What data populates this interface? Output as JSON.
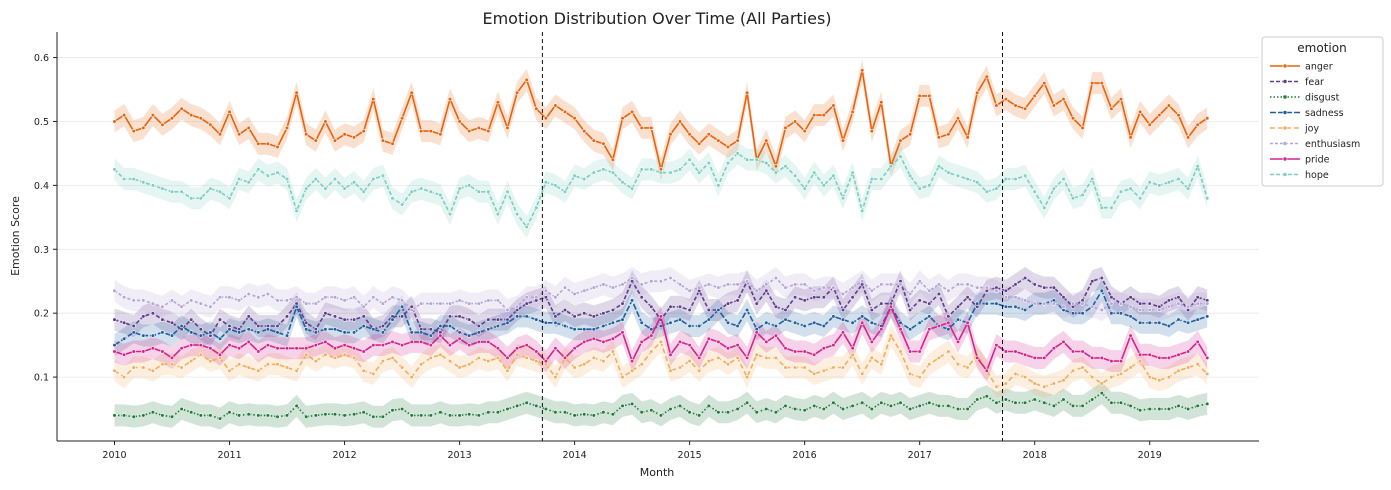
{
  "chart_data": {
    "type": "line",
    "title": "Emotion Distribution Over Time (All Parties)",
    "xlabel": "Month",
    "ylabel": "Emotion Score",
    "xlim": [
      2009.5,
      2019.95
    ],
    "ylim": [
      0.0,
      0.64
    ],
    "x_ticks": [
      "2010",
      "2011",
      "2012",
      "2013",
      "2014",
      "2015",
      "2016",
      "2017",
      "2018",
      "2019"
    ],
    "y_ticks": [
      "0.1",
      "0.2",
      "0.3",
      "0.4",
      "0.5",
      "0.6"
    ],
    "grid": "horizontal",
    "legend": {
      "title": "emotion",
      "placement": "right"
    },
    "vlines": [
      2013.72,
      2017.72
    ],
    "x_start": 2010.0,
    "x_step_months": 1,
    "series": [
      {
        "name": "anger",
        "color": "#e6640f",
        "dash": "",
        "values": [
          0.5,
          0.51,
          0.485,
          0.49,
          0.51,
          0.495,
          0.505,
          0.52,
          0.51,
          0.505,
          0.495,
          0.48,
          0.515,
          0.48,
          0.49,
          0.465,
          0.465,
          0.46,
          0.49,
          0.545,
          0.48,
          0.47,
          0.5,
          0.47,
          0.48,
          0.475,
          0.485,
          0.535,
          0.47,
          0.465,
          0.505,
          0.545,
          0.485,
          0.485,
          0.48,
          0.535,
          0.5,
          0.485,
          0.49,
          0.485,
          0.53,
          0.49,
          0.545,
          0.565,
          0.52,
          0.505,
          0.525,
          0.515,
          0.505,
          0.485,
          0.47,
          0.465,
          0.44,
          0.505,
          0.515,
          0.49,
          0.49,
          0.425,
          0.48,
          0.5,
          0.48,
          0.465,
          0.48,
          0.47,
          0.46,
          0.47,
          0.545,
          0.44,
          0.47,
          0.43,
          0.49,
          0.5,
          0.485,
          0.51,
          0.51,
          0.525,
          0.47,
          0.515,
          0.58,
          0.485,
          0.53,
          0.43,
          0.47,
          0.48,
          0.54,
          0.54,
          0.475,
          0.48,
          0.505,
          0.475,
          0.545,
          0.57,
          0.525,
          0.535,
          0.525,
          0.52,
          0.54,
          0.56,
          0.525,
          0.535,
          0.505,
          0.49,
          0.56,
          0.56,
          0.52,
          0.535,
          0.475,
          0.515,
          0.495,
          0.51,
          0.525,
          0.51,
          0.475,
          0.495,
          0.505
        ]
      },
      {
        "name": "fear",
        "color": "#5f3c8e",
        "dash": "4,2",
        "values": [
          0.19,
          0.185,
          0.18,
          0.195,
          0.2,
          0.19,
          0.185,
          0.175,
          0.19,
          0.175,
          0.165,
          0.19,
          0.18,
          0.175,
          0.195,
          0.18,
          0.18,
          0.18,
          0.195,
          0.215,
          0.185,
          0.175,
          0.2,
          0.195,
          0.19,
          0.19,
          0.195,
          0.175,
          0.18,
          0.195,
          0.195,
          0.21,
          0.175,
          0.175,
          0.17,
          0.195,
          0.195,
          0.19,
          0.18,
          0.19,
          0.19,
          0.19,
          0.205,
          0.215,
          0.22,
          0.225,
          0.195,
          0.205,
          0.195,
          0.2,
          0.195,
          0.2,
          0.205,
          0.215,
          0.25,
          0.225,
          0.21,
          0.19,
          0.21,
          0.21,
          0.205,
          0.235,
          0.205,
          0.205,
          0.215,
          0.22,
          0.25,
          0.215,
          0.235,
          0.21,
          0.205,
          0.225,
          0.22,
          0.225,
          0.225,
          0.24,
          0.205,
          0.225,
          0.245,
          0.205,
          0.215,
          0.215,
          0.25,
          0.205,
          0.22,
          0.215,
          0.23,
          0.195,
          0.21,
          0.225,
          0.21,
          0.235,
          0.24,
          0.235,
          0.245,
          0.255,
          0.245,
          0.24,
          0.24,
          0.225,
          0.21,
          0.22,
          0.25,
          0.255,
          0.225,
          0.215,
          0.225,
          0.215,
          0.215,
          0.21,
          0.22,
          0.225,
          0.205,
          0.225,
          0.22
        ]
      },
      {
        "name": "disgust",
        "color": "#1e7a39",
        "dash": "1.5,2",
        "values": [
          0.04,
          0.04,
          0.038,
          0.04,
          0.045,
          0.04,
          0.038,
          0.05,
          0.045,
          0.04,
          0.04,
          0.035,
          0.045,
          0.04,
          0.042,
          0.04,
          0.04,
          0.038,
          0.04,
          0.055,
          0.038,
          0.04,
          0.042,
          0.042,
          0.04,
          0.042,
          0.045,
          0.038,
          0.038,
          0.048,
          0.05,
          0.04,
          0.04,
          0.04,
          0.045,
          0.04,
          0.04,
          0.042,
          0.04,
          0.045,
          0.045,
          0.05,
          0.055,
          0.06,
          0.055,
          0.05,
          0.045,
          0.045,
          0.04,
          0.042,
          0.04,
          0.045,
          0.042,
          0.055,
          0.058,
          0.045,
          0.048,
          0.04,
          0.05,
          0.055,
          0.045,
          0.04,
          0.055,
          0.045,
          0.045,
          0.05,
          0.06,
          0.045,
          0.05,
          0.045,
          0.055,
          0.05,
          0.048,
          0.055,
          0.05,
          0.06,
          0.05,
          0.055,
          0.06,
          0.05,
          0.06,
          0.055,
          0.06,
          0.05,
          0.055,
          0.06,
          0.055,
          0.055,
          0.05,
          0.05,
          0.065,
          0.07,
          0.06,
          0.065,
          0.06,
          0.06,
          0.065,
          0.06,
          0.055,
          0.065,
          0.055,
          0.055,
          0.065,
          0.075,
          0.06,
          0.06,
          0.055,
          0.048,
          0.05,
          0.05,
          0.05,
          0.055,
          0.05,
          0.055,
          0.058
        ]
      },
      {
        "name": "sadness",
        "color": "#1f5fa0",
        "dash": "6,2",
        "values": [
          0.15,
          0.16,
          0.17,
          0.165,
          0.165,
          0.17,
          0.165,
          0.18,
          0.17,
          0.165,
          0.17,
          0.16,
          0.175,
          0.17,
          0.175,
          0.17,
          0.175,
          0.17,
          0.165,
          0.21,
          0.175,
          0.17,
          0.175,
          0.175,
          0.17,
          0.17,
          0.18,
          0.175,
          0.17,
          0.19,
          0.21,
          0.17,
          0.17,
          0.165,
          0.18,
          0.18,
          0.17,
          0.165,
          0.17,
          0.175,
          0.18,
          0.185,
          0.195,
          0.195,
          0.19,
          0.185,
          0.185,
          0.18,
          0.175,
          0.175,
          0.175,
          0.18,
          0.185,
          0.19,
          0.22,
          0.185,
          0.175,
          0.18,
          0.185,
          0.19,
          0.18,
          0.18,
          0.19,
          0.205,
          0.185,
          0.18,
          0.205,
          0.175,
          0.185,
          0.18,
          0.19,
          0.185,
          0.18,
          0.185,
          0.18,
          0.195,
          0.19,
          0.185,
          0.195,
          0.185,
          0.18,
          0.21,
          0.185,
          0.175,
          0.185,
          0.195,
          0.18,
          0.175,
          0.19,
          0.185,
          0.215,
          0.215,
          0.215,
          0.21,
          0.21,
          0.205,
          0.215,
          0.215,
          0.22,
          0.205,
          0.2,
          0.2,
          0.21,
          0.235,
          0.2,
          0.2,
          0.195,
          0.185,
          0.185,
          0.185,
          0.18,
          0.19,
          0.185,
          0.19,
          0.195
        ]
      },
      {
        "name": "joy",
        "color": "#f3ad5e",
        "dash": "5,3",
        "values": [
          0.11,
          0.1,
          0.115,
          0.115,
          0.11,
          0.12,
          0.12,
          0.115,
          0.125,
          0.135,
          0.125,
          0.13,
          0.11,
          0.12,
          0.115,
          0.11,
          0.12,
          0.12,
          0.115,
          0.11,
          0.135,
          0.125,
          0.135,
          0.13,
          0.135,
          0.13,
          0.11,
          0.105,
          0.125,
          0.13,
          0.115,
          0.1,
          0.12,
          0.13,
          0.135,
          0.125,
          0.115,
          0.12,
          0.13,
          0.125,
          0.13,
          0.11,
          0.135,
          0.13,
          0.125,
          0.12,
          0.1,
          0.13,
          0.115,
          0.12,
          0.13,
          0.125,
          0.14,
          0.1,
          0.11,
          0.12,
          0.14,
          0.155,
          0.11,
          0.115,
          0.125,
          0.11,
          0.125,
          0.13,
          0.12,
          0.13,
          0.1,
          0.135,
          0.13,
          0.13,
          0.115,
          0.115,
          0.115,
          0.105,
          0.11,
          0.115,
          0.115,
          0.135,
          0.105,
          0.13,
          0.12,
          0.165,
          0.14,
          0.105,
          0.1,
          0.12,
          0.13,
          0.14,
          0.12,
          0.115,
          0.135,
          0.11,
          0.085,
          0.09,
          0.105,
          0.1,
          0.09,
          0.085,
          0.09,
          0.095,
          0.11,
          0.115,
          0.1,
          0.09,
          0.1,
          0.105,
          0.115,
          0.125,
          0.1,
          0.095,
          0.1,
          0.11,
          0.115,
          0.12,
          0.105
        ]
      },
      {
        "name": "enthusiasm",
        "color": "#b3a5d6",
        "dash": "3,2",
        "values": [
          0.235,
          0.225,
          0.22,
          0.22,
          0.215,
          0.21,
          0.22,
          0.21,
          0.22,
          0.215,
          0.21,
          0.225,
          0.225,
          0.22,
          0.23,
          0.225,
          0.23,
          0.22,
          0.22,
          0.225,
          0.215,
          0.215,
          0.225,
          0.225,
          0.22,
          0.225,
          0.21,
          0.225,
          0.215,
          0.225,
          0.22,
          0.205,
          0.215,
          0.215,
          0.215,
          0.215,
          0.22,
          0.215,
          0.215,
          0.22,
          0.22,
          0.205,
          0.21,
          0.225,
          0.225,
          0.235,
          0.225,
          0.24,
          0.23,
          0.235,
          0.24,
          0.245,
          0.24,
          0.245,
          0.255,
          0.245,
          0.25,
          0.25,
          0.255,
          0.245,
          0.235,
          0.24,
          0.245,
          0.24,
          0.245,
          0.245,
          0.25,
          0.235,
          0.245,
          0.255,
          0.24,
          0.245,
          0.245,
          0.235,
          0.24,
          0.24,
          0.23,
          0.24,
          0.25,
          0.235,
          0.245,
          0.245,
          0.245,
          0.23,
          0.25,
          0.235,
          0.245,
          0.235,
          0.245,
          0.245,
          0.24,
          0.24,
          0.235,
          0.225,
          0.225,
          0.22,
          0.215,
          0.215,
          0.215,
          0.21,
          0.215,
          0.215,
          0.21,
          0.205,
          0.215,
          0.215,
          0.21,
          0.205,
          0.205,
          0.205,
          0.21,
          0.215,
          0.21,
          0.215,
          0.215
        ]
      },
      {
        "name": "pride",
        "color": "#d4248d",
        "dash": "",
        "values": [
          0.14,
          0.135,
          0.14,
          0.14,
          0.145,
          0.14,
          0.13,
          0.145,
          0.15,
          0.15,
          0.145,
          0.135,
          0.15,
          0.145,
          0.155,
          0.14,
          0.15,
          0.145,
          0.145,
          0.145,
          0.145,
          0.15,
          0.155,
          0.145,
          0.15,
          0.145,
          0.14,
          0.15,
          0.15,
          0.155,
          0.15,
          0.155,
          0.155,
          0.15,
          0.165,
          0.15,
          0.16,
          0.15,
          0.155,
          0.155,
          0.145,
          0.13,
          0.145,
          0.15,
          0.14,
          0.125,
          0.145,
          0.13,
          0.145,
          0.155,
          0.16,
          0.155,
          0.16,
          0.17,
          0.125,
          0.155,
          0.165,
          0.195,
          0.135,
          0.155,
          0.15,
          0.13,
          0.16,
          0.155,
          0.145,
          0.15,
          0.13,
          0.17,
          0.155,
          0.165,
          0.145,
          0.14,
          0.14,
          0.135,
          0.145,
          0.15,
          0.17,
          0.145,
          0.185,
          0.155,
          0.175,
          0.21,
          0.175,
          0.14,
          0.14,
          0.175,
          0.18,
          0.185,
          0.155,
          0.185,
          0.13,
          0.11,
          0.15,
          0.14,
          0.14,
          0.135,
          0.13,
          0.13,
          0.145,
          0.155,
          0.14,
          0.14,
          0.13,
          0.13,
          0.125,
          0.125,
          0.165,
          0.135,
          0.135,
          0.13,
          0.13,
          0.135,
          0.14,
          0.155,
          0.13
        ]
      },
      {
        "name": "hope",
        "color": "#7dcdc0",
        "dash": "4,2",
        "values": [
          0.425,
          0.41,
          0.41,
          0.405,
          0.4,
          0.395,
          0.39,
          0.39,
          0.38,
          0.38,
          0.395,
          0.39,
          0.38,
          0.41,
          0.405,
          0.425,
          0.415,
          0.42,
          0.41,
          0.36,
          0.395,
          0.41,
          0.395,
          0.41,
          0.395,
          0.405,
          0.39,
          0.41,
          0.415,
          0.38,
          0.37,
          0.39,
          0.395,
          0.39,
          0.385,
          0.355,
          0.395,
          0.4,
          0.39,
          0.39,
          0.355,
          0.39,
          0.355,
          0.335,
          0.365,
          0.405,
          0.4,
          0.39,
          0.415,
          0.41,
          0.42,
          0.425,
          0.42,
          0.405,
          0.395,
          0.425,
          0.425,
          0.42,
          0.42,
          0.425,
          0.44,
          0.42,
          0.435,
          0.4,
          0.435,
          0.45,
          0.44,
          0.44,
          0.435,
          0.42,
          0.43,
          0.415,
          0.395,
          0.42,
          0.4,
          0.415,
          0.38,
          0.42,
          0.36,
          0.41,
          0.41,
          0.43,
          0.445,
          0.415,
          0.395,
          0.4,
          0.43,
          0.42,
          0.415,
          0.41,
          0.405,
          0.39,
          0.395,
          0.41,
          0.41,
          0.415,
          0.39,
          0.365,
          0.395,
          0.41,
          0.38,
          0.385,
          0.41,
          0.365,
          0.365,
          0.39,
          0.395,
          0.38,
          0.405,
          0.4,
          0.405,
          0.41,
          0.395,
          0.43,
          0.38
        ]
      }
    ]
  }
}
